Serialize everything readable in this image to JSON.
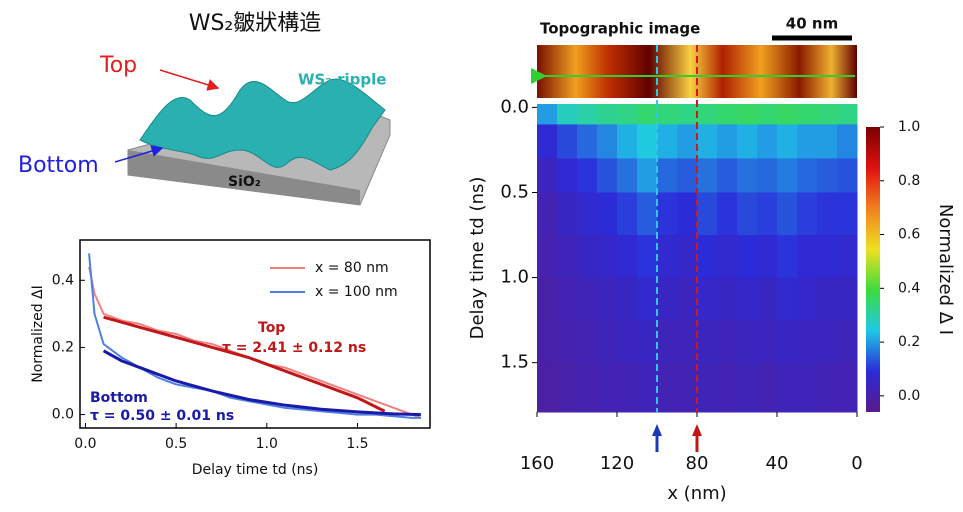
{
  "diagram": {
    "title": "WS₂皺狀構造",
    "top": "Top",
    "bottom": "Bottom",
    "ripple": "WS₂ ripple",
    "substrate": "SiO₂"
  },
  "chart_data": [
    {
      "type": "line",
      "xlabel": "Delay time td (ns)",
      "ylabel": "Normalized ΔI",
      "xlim": [
        -0.03,
        1.9
      ],
      "ylim": [
        -0.04,
        0.52
      ],
      "xticks": [
        {
          "value": 0,
          "label": "0.0"
        },
        0.5,
        {
          "value": 1,
          "label": "1.0"
        },
        1.5
      ],
      "yticks": [
        {
          "value": 0,
          "label": "0.0"
        },
        0.2,
        0.4
      ],
      "x": [
        0.02,
        0.05,
        0.1,
        0.2,
        0.3,
        0.4,
        0.5,
        0.6,
        0.7,
        0.8,
        0.9,
        1.0,
        1.1,
        1.2,
        1.3,
        1.4,
        1.5,
        1.6,
        1.7,
        1.8,
        1.85
      ],
      "series": [
        {
          "name": "x = 80 nm",
          "color": "#f08080",
          "values": [
            0.44,
            0.36,
            0.3,
            0.28,
            0.27,
            0.25,
            0.24,
            0.22,
            0.21,
            0.19,
            0.17,
            0.15,
            0.14,
            0.12,
            0.1,
            0.08,
            0.06,
            0.04,
            0.02,
            0.0,
            -0.01
          ]
        },
        {
          "name": "x = 100 nm",
          "color": "#4f7fe0",
          "values": [
            0.48,
            0.3,
            0.21,
            0.17,
            0.14,
            0.11,
            0.09,
            0.08,
            0.07,
            0.05,
            0.04,
            0.03,
            0.02,
            0.015,
            0.01,
            0.005,
            0.0,
            0.0,
            -0.005,
            -0.01,
            -0.01
          ]
        }
      ],
      "fits": [
        {
          "color": "#c01818",
          "x": [
            0.1,
            0.3,
            0.5,
            0.7,
            0.9,
            1.1,
            1.3,
            1.5,
            1.65
          ],
          "values": [
            0.29,
            0.26,
            0.23,
            0.2,
            0.17,
            0.13,
            0.09,
            0.05,
            0.01
          ]
        },
        {
          "color": "#1a1aa8",
          "x": [
            0.1,
            0.2,
            0.3,
            0.4,
            0.5,
            0.7,
            0.9,
            1.1,
            1.3,
            1.5,
            1.7,
            1.85
          ],
          "values": [
            0.19,
            0.16,
            0.14,
            0.12,
            0.1,
            0.07,
            0.045,
            0.028,
            0.016,
            0.008,
            0.002,
            0.0
          ]
        }
      ],
      "annotations": [
        {
          "text": "Top",
          "color": "#c01818"
        },
        {
          "text": "τ = 2.41 ± 0.12 ns",
          "color": "#c01818"
        },
        {
          "text": "Bottom",
          "color": "#1a1aa8"
        },
        {
          "text": "τ = 0.50 ± 0.01 ns",
          "color": "#1a1aa8"
        }
      ]
    },
    {
      "type": "heatmap",
      "title": "Topographic image",
      "scale_bar": "40 nm",
      "xlabel": "x (nm)",
      "ylabel": "Delay time td (ns)",
      "colorbar_label": "Normalized Δ I",
      "xlim": [
        160,
        0
      ],
      "ylim": [
        -0.02,
        1.79
      ],
      "clim": [
        -0.06,
        1.0
      ],
      "xticks": [
        160,
        120,
        80,
        40,
        0
      ],
      "yticks": [
        {
          "value": 0,
          "label": "0.0"
        },
        0.5,
        {
          "value": 1,
          "label": "1.0"
        },
        1.5
      ],
      "cticks": [
        {
          "value": 0,
          "label": "0.0"
        },
        0.2,
        0.4,
        0.6,
        0.8,
        {
          "value": 1,
          "label": "1.0"
        }
      ],
      "colormap": [
        "#5b1a8a",
        "#2b2bd9",
        "#1ec8e6",
        "#3ddc3d",
        "#f0e020",
        "#f08020",
        "#e01010",
        "#7a0000"
      ],
      "col_edges": [
        160,
        150,
        140,
        130,
        120,
        110,
        100,
        90,
        80,
        70,
        60,
        50,
        40,
        30,
        20,
        10,
        0
      ],
      "row_edges": [
        -0.02,
        0.1,
        0.3,
        0.5,
        0.75,
        1.0,
        1.25,
        1.5,
        1.79
      ],
      "values": [
        [
          0.2,
          0.28,
          0.3,
          0.32,
          0.33,
          0.35,
          0.34,
          0.33,
          0.34,
          0.35,
          0.36,
          0.35,
          0.36,
          0.35,
          0.34,
          0.33
        ],
        [
          0.08,
          0.12,
          0.15,
          0.18,
          0.22,
          0.25,
          0.22,
          0.2,
          0.22,
          0.2,
          0.22,
          0.2,
          0.22,
          0.2,
          0.2,
          0.18
        ],
        [
          0.04,
          0.08,
          0.1,
          0.13,
          0.16,
          0.2,
          0.15,
          0.14,
          0.16,
          0.14,
          0.16,
          0.15,
          0.17,
          0.15,
          0.14,
          0.13
        ],
        [
          0.02,
          0.05,
          0.07,
          0.09,
          0.11,
          0.14,
          0.1,
          0.09,
          0.12,
          0.1,
          0.12,
          0.11,
          0.13,
          0.11,
          0.1,
          0.1
        ],
        [
          0.01,
          0.03,
          0.05,
          0.06,
          0.08,
          0.1,
          0.07,
          0.06,
          0.09,
          0.07,
          0.09,
          0.08,
          0.1,
          0.08,
          0.08,
          0.07
        ],
        [
          0,
          0.02,
          0.03,
          0.04,
          0.05,
          0.07,
          0.05,
          0.04,
          0.06,
          0.05,
          0.06,
          0.05,
          0.07,
          0.06,
          0.05,
          0.05
        ],
        [
          0,
          0.01,
          0.02,
          0.03,
          0.04,
          0.05,
          0.03,
          0.03,
          0.04,
          0.03,
          0.04,
          0.04,
          0.05,
          0.04,
          0.04,
          0.03
        ],
        [
          -0.01,
          0,
          0.01,
          0.02,
          0.02,
          0.03,
          0.02,
          0.02,
          0.03,
          0.02,
          0.03,
          0.02,
          0.03,
          0.03,
          0.02,
          0.02
        ]
      ],
      "markers": [
        {
          "x": 100,
          "color": "#30c8e8"
        },
        {
          "x": 80,
          "color": "#d01818"
        }
      ]
    }
  ]
}
